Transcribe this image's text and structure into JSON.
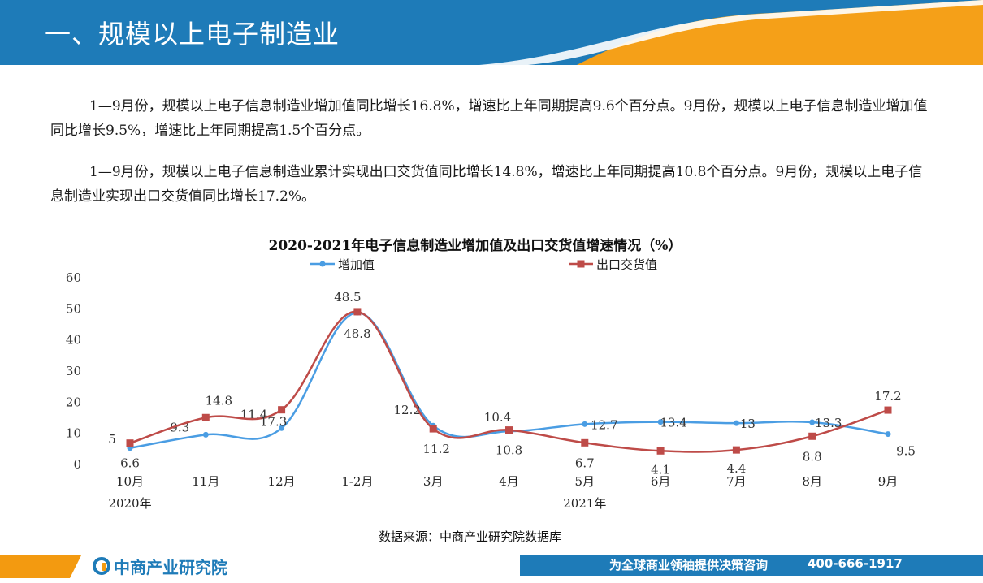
{
  "header": {
    "title": "一、规模以上电子制造业"
  },
  "paragraphs": [
    "1—9月份，规模以上电子信息制造业增加值同比增长16.8%，增速比上年同期提高9.6个百分点。9月份，规模以上电子信息制造业增加值同比增长9.5%，增速比上年同期提高1.5个百分点。",
    "1—9月份，规模以上电子信息制造业累计实现出口交货值同比增长14.8%，增速比上年同期提高10.8个百分点。9月份，规模以上电子信息制造业实现出口交货值同比增长17.2%。"
  ],
  "chart_data": {
    "type": "line",
    "title": "2020-2021年电子信息制造业增加值及出口交货值增速情况（%）",
    "categories": [
      "10月",
      "11月",
      "12月",
      "1-2月",
      "3月",
      "4月",
      "5月",
      "6月",
      "7月",
      "8月",
      "9月"
    ],
    "year_labels": [
      {
        "label": "2020年",
        "category_index": 0
      },
      {
        "label": "2021年",
        "category_index": 6
      }
    ],
    "ylim": [
      0,
      60
    ],
    "yticks": [
      0,
      10,
      20,
      30,
      40,
      50,
      60
    ],
    "legend_position": "top",
    "grid": false,
    "series": [
      {
        "name": "增加值",
        "color": "#4a9de3",
        "marker": "circle",
        "values": [
          5,
          9.3,
          11.4,
          48.5,
          12.2,
          10.4,
          12.7,
          13.4,
          13,
          13.3,
          9.5
        ],
        "labels": [
          "5",
          "9.3",
          "11.4",
          "48.5",
          "12.2",
          "10.4",
          "12.7",
          "13.4",
          "13",
          "13.3",
          "9.5"
        ]
      },
      {
        "name": "出口交货值",
        "color": "#be4b48",
        "marker": "square",
        "values": [
          6.6,
          14.8,
          17.3,
          48.8,
          11.2,
          10.8,
          6.7,
          4.1,
          4.4,
          8.8,
          17.2
        ],
        "labels": [
          "6.6",
          "14.8",
          "17.3",
          "48.8",
          "11.2",
          "10.8",
          "6.7",
          "4.1",
          "4.4",
          "8.8",
          "17.2"
        ]
      }
    ]
  },
  "source": "数据来源：中商产业研究院数据库",
  "footer": {
    "logo": "中商产业研究院",
    "slogan": "为全球商业领袖提供决策咨询",
    "phone": "400-666-1917"
  }
}
